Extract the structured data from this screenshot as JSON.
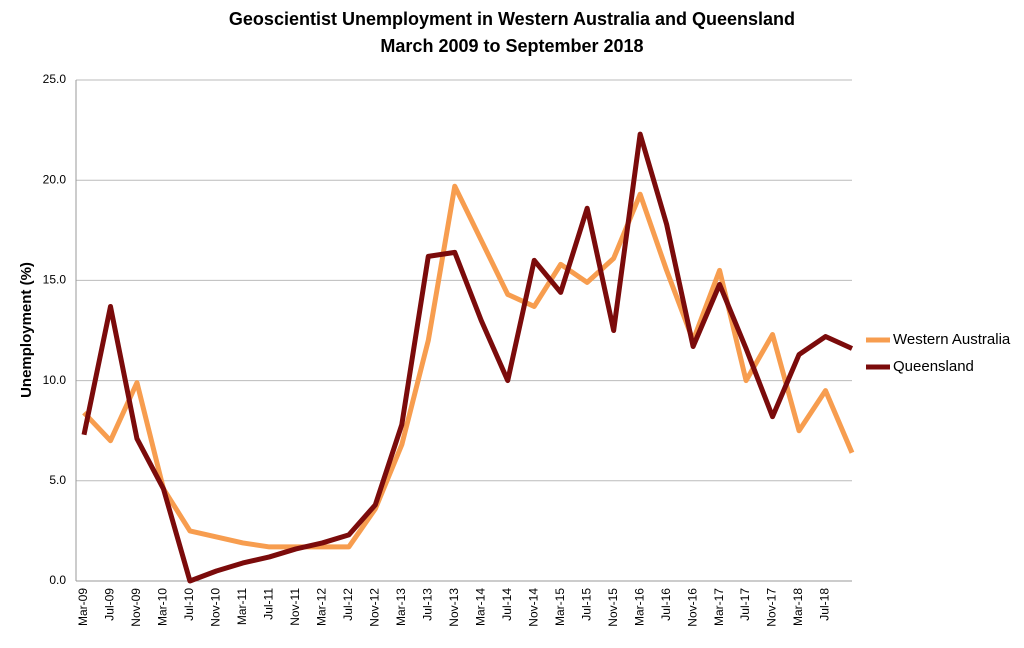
{
  "chart_data": {
    "type": "line",
    "title": "Geoscientist Unemployment in Western Australia and Queensland",
    "subtitle": "March 2009 to September 2018",
    "y_label": "Unemployment (%)",
    "categories": [
      "Mar-09",
      "Jul-09",
      "Nov-09",
      "Mar-10",
      "Jul-10",
      "Nov-10",
      "Mar-11",
      "Jul-11",
      "Nov-11",
      "Mar-12",
      "Jul-12",
      "Nov-12",
      "Mar-13",
      "Jul-13",
      "Nov-13",
      "Mar-14",
      "Jul-14",
      "Nov-14",
      "Mar-15",
      "Jul-15",
      "Nov-15",
      "Mar-16",
      "Jul-16",
      "Nov-16",
      "Mar-17",
      "Jul-17",
      "Nov-17",
      "Mar-18",
      "Jul-18",
      null
    ],
    "series": [
      {
        "name": "Western Australia",
        "color": "#f79d4f",
        "values": [
          8.4,
          7.0,
          9.9,
          4.6,
          2.5,
          2.2,
          1.9,
          1.7,
          1.7,
          1.7,
          1.7,
          3.6,
          6.8,
          12.0,
          19.7,
          17.0,
          14.3,
          13.7,
          15.8,
          14.9,
          16.1,
          19.3,
          15.5,
          12.0,
          15.5,
          10.0,
          12.3,
          7.5,
          9.5,
          6.4
        ]
      },
      {
        "name": "Queensland",
        "color": "#7b0b0b",
        "values": [
          7.3,
          13.7,
          7.1,
          4.6,
          0.0,
          0.5,
          0.9,
          1.2,
          1.6,
          1.9,
          2.3,
          3.8,
          7.8,
          16.2,
          16.4,
          13.0,
          10.0,
          16.0,
          14.4,
          18.6,
          12.5,
          22.3,
          17.8,
          11.7,
          14.8,
          11.6,
          8.2,
          11.3,
          12.2,
          11.6
        ]
      }
    ],
    "ylim": [
      0,
      25
    ],
    "yticks": [
      {
        "value": 0,
        "label": "0.0"
      },
      {
        "value": 5,
        "label": "5.0"
      },
      {
        "value": 10,
        "label": "10.0"
      },
      {
        "value": 15,
        "label": "15.0"
      },
      {
        "value": 20,
        "label": "20.0"
      },
      {
        "value": 25,
        "label": "25.0"
      }
    ],
    "grid": true,
    "legend": "right"
  }
}
